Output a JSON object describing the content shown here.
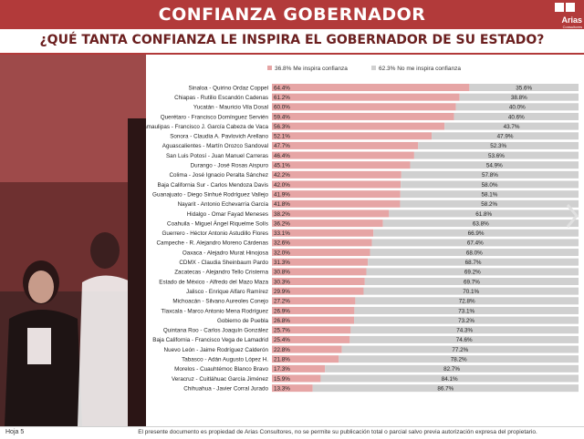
{
  "header": {
    "title": "CONFIANZA GOBERNADOR",
    "logo": "Arias",
    "logo_sub": "Consultores"
  },
  "question": "¿QUÉ TANTA CONFIANZA LE INSPIRA EL GOBERNADOR DE SU ESTADO?",
  "footer": {
    "page": "Hoja 5",
    "note": "El presente documento es propiedad de Arias Consultores, no se permite su publicación total o parcial salvo previa autorización expresa del propietario."
  },
  "colors": {
    "brand": "#b23a3a",
    "series_confia": "#e6a5a5",
    "series_no": "#d0d0d0"
  },
  "icons": {
    "next": "chevron-right-icon"
  },
  "chart_data": {
    "type": "bar",
    "orientation": "horizontal",
    "stacked": true,
    "legend_position": "top",
    "xlim": [
      0,
      100
    ],
    "grid": false,
    "categories": [
      "Sinaloa - Quirino Ordaz Coppel",
      "Chiapas - Rutilio Escandón Cadenas",
      "Yucatán - Mauricio Vila Dosal",
      "Querétaro - Francisco Domínguez Servién",
      "Tamaulipas - Francisco J. García Cabeza de Vaca",
      "Sonora - Claudia A. Pavlovich Arellano",
      "Aguascalientes - Martín Orozco Sandoval",
      "San Luis Potosí - Juan Manuel Carreras",
      "Durango - José Rosas Aispuro",
      "Colima - José Ignacio Peralta Sánchez",
      "Baja California Sur - Carlos Mendoza Davis",
      "Guanajuato - Diego Sinhué Rodríguez Vallejo",
      "Nayarit - Antonio Echevarría García",
      "Hidalgo - Omar Fayad Meneses",
      "Coahuila - Miguel Ángel Riquelme Solís",
      "Guerrero - Héctor Antonio Astudillo Flores",
      "Campeche - R. Alejandro Moreno Cárdenas",
      "Oaxaca - Alejadro Murat Hinojosa",
      "CDMX - Claudia Sheinbaum Pardo",
      "Zacatecas - Alejandro Tello Cristerna",
      "Estado de México - Alfredo del Mazo Maza",
      "Jalisco - Enrique Alfaro Ramírez",
      "Michoacán - Silvano Aureoles Conejo",
      "Tlaxcala - Marco Antonio Mena Rodríguez",
      "Gobierno de Puebla",
      "Quintana Roo - Carlos Joaquín González",
      "Baja California - Francisco Vega de Lamadrid",
      "Nuevo León - Jaime Rodríguez Calderón",
      "Tabasco - Adán Augusto López H.",
      "Morelos - Cuauhtémoc Blanco Bravo",
      "Veracruz - Cuitláhuac García Jiménez",
      "Chihuahua - Javier Corral Jurado"
    ],
    "series": [
      {
        "name": "36.8% Me inspira confianza",
        "values": [
          64.4,
          61.2,
          60.0,
          59.4,
          56.3,
          52.1,
          47.7,
          46.4,
          45.1,
          42.2,
          42.0,
          41.9,
          41.8,
          38.2,
          36.2,
          33.1,
          32.6,
          32.0,
          31.3,
          30.8,
          30.3,
          29.9,
          27.2,
          26.9,
          26.8,
          25.7,
          25.4,
          22.8,
          21.8,
          17.3,
          15.9,
          13.3
        ]
      },
      {
        "name": "62.3% No me inspira confianza",
        "values": [
          35.6,
          38.8,
          40.0,
          40.6,
          43.7,
          47.9,
          52.3,
          53.6,
          54.9,
          57.8,
          58.0,
          58.1,
          58.2,
          61.8,
          63.8,
          66.9,
          67.4,
          68.0,
          68.7,
          69.2,
          69.7,
          70.1,
          72.8,
          73.1,
          73.2,
          74.3,
          74.6,
          77.2,
          78.2,
          82.7,
          84.1,
          86.7
        ]
      }
    ]
  }
}
